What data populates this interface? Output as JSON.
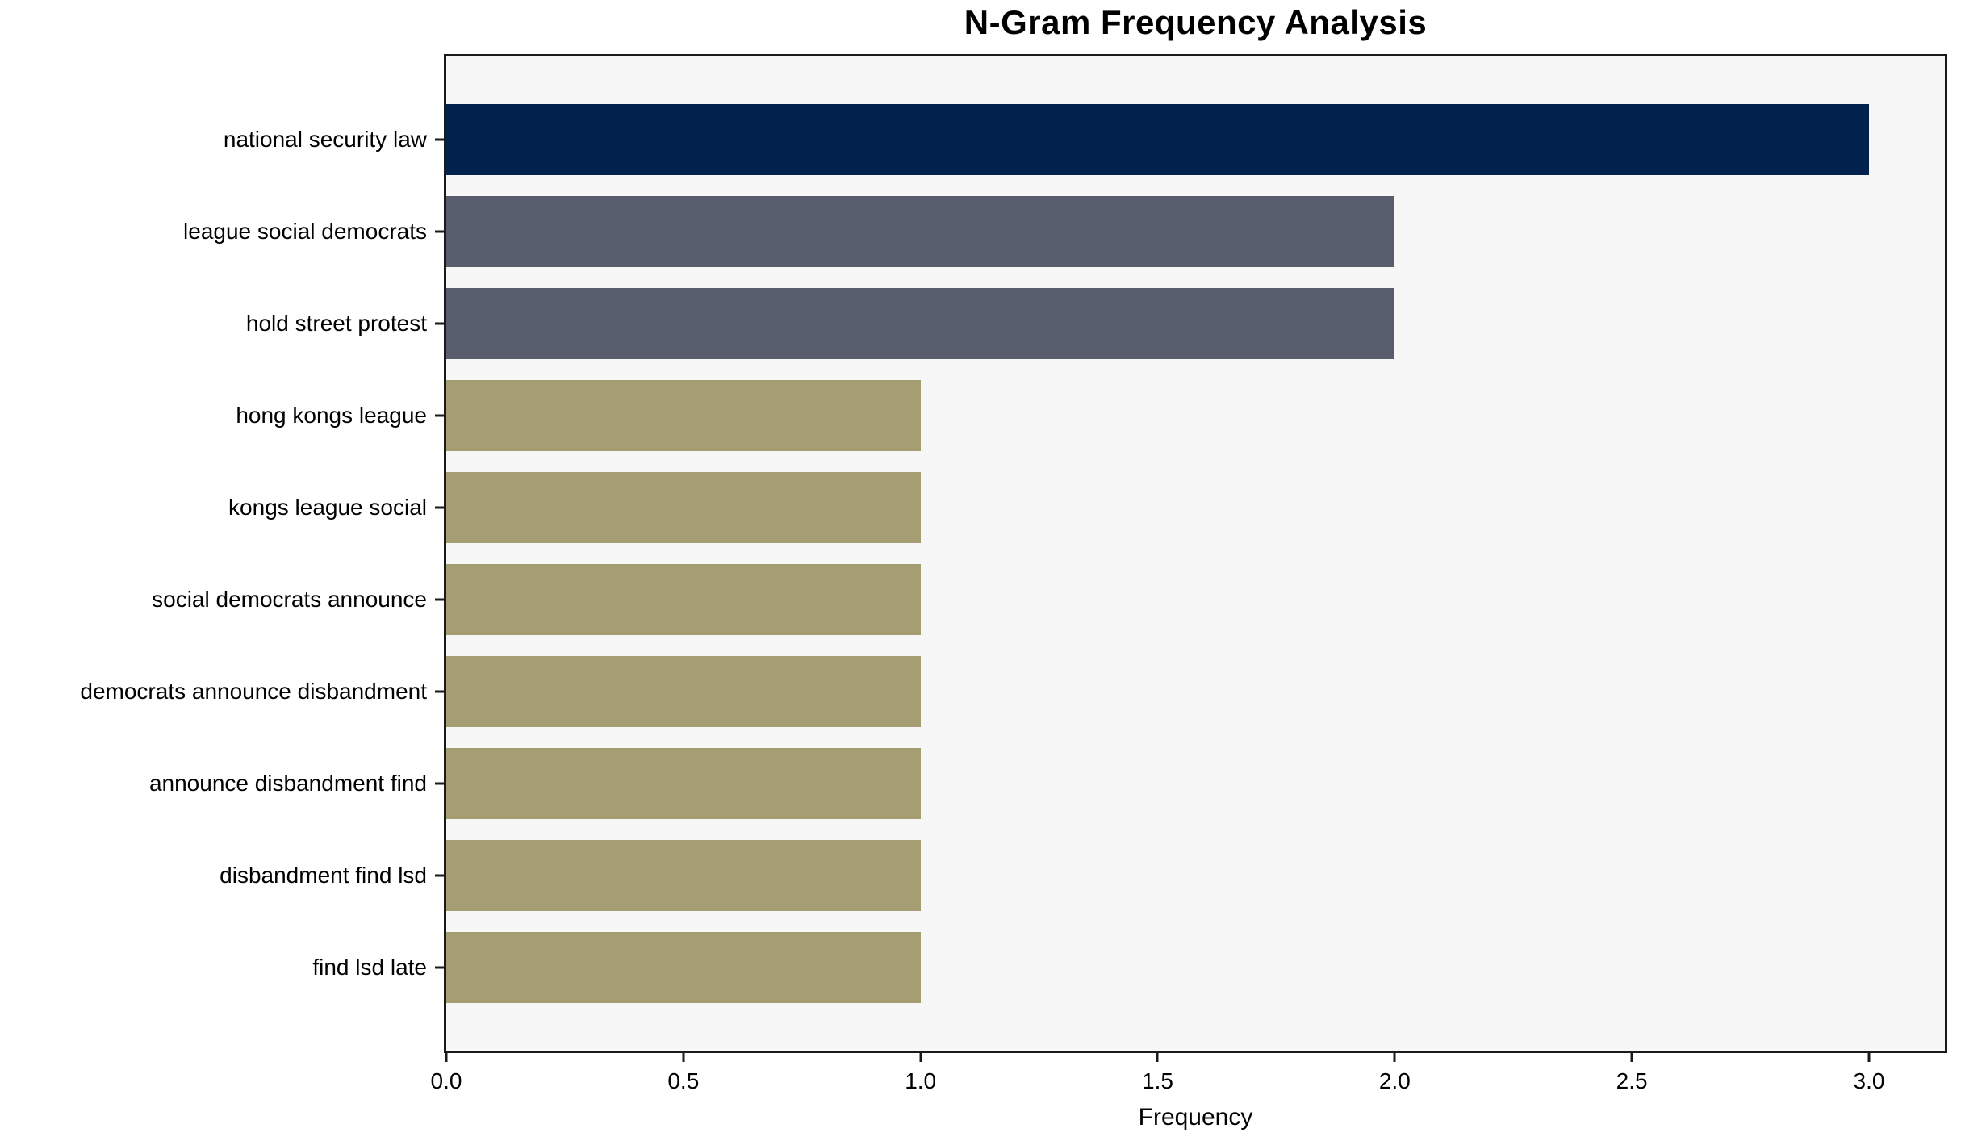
{
  "chart_data": {
    "type": "bar",
    "orientation": "horizontal",
    "title": "N-Gram Frequency Analysis",
    "xlabel": "Frequency",
    "ylabel": "",
    "categories": [
      "national security law",
      "league social democrats",
      "hold street protest",
      "hong kongs league",
      "kongs league social",
      "social democrats announce",
      "democrats announce disbandment",
      "announce disbandment find",
      "disbandment find lsd",
      "find lsd late"
    ],
    "values": [
      3,
      2,
      2,
      1,
      1,
      1,
      1,
      1,
      1,
      1
    ],
    "xlim": [
      0,
      3.16
    ],
    "xticks": [
      0,
      0.5,
      1,
      1.5,
      2,
      2.5,
      3
    ],
    "xtick_labels": [
      "0.0",
      "0.5",
      "1.0",
      "1.5",
      "2.0",
      "2.5",
      "3.0"
    ],
    "grid": false,
    "legend": "none",
    "bar_colors": [
      "#02224E",
      "#575D6D",
      "#575D6D",
      "#A69E73",
      "#A69E73",
      "#A69E73",
      "#A69E73",
      "#A69E73",
      "#A69E73",
      "#A69E73"
    ],
    "colors": {
      "figure_bg": "#FFFFFF",
      "plot_bg": "#F7F7F8",
      "spine": "#1A1A1A",
      "text": "#000000"
    }
  }
}
